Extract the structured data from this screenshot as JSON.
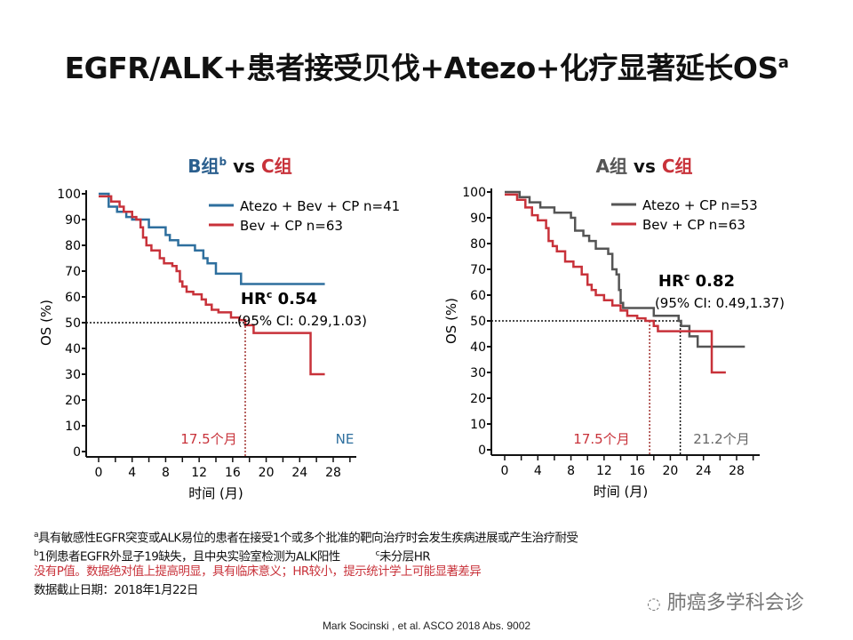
{
  "title": {
    "text": "EGFR/ALK+患者接受贝伐+Atezo+化疗显著延长OS",
    "sup": "a"
  },
  "chart_data": [
    {
      "type": "line",
      "subtype": "kaplan-meier",
      "title_parts": [
        {
          "text": "B组",
          "color": "#2b5f8e"
        },
        {
          "text": "b",
          "sup": true,
          "color": "#2b5f8e"
        },
        {
          "text": " vs ",
          "color": "#111"
        },
        {
          "text": "C组",
          "color": "#c8323a"
        }
      ],
      "xlabel": "时间 (月)",
      "ylabel": "OS (%)",
      "xlim": [
        0,
        28
      ],
      "ylim": [
        0,
        100
      ],
      "xticks": [
        0,
        4,
        8,
        12,
        16,
        20,
        24,
        28
      ],
      "yticks": [
        0,
        10,
        20,
        30,
        40,
        50,
        60,
        70,
        80,
        90,
        100
      ],
      "series": [
        {
          "name": "Atezo + Bev + CP n=41",
          "color": "#2e6f9e",
          "points": [
            [
              0,
              100
            ],
            [
              1.2,
              95
            ],
            [
              2.2,
              93
            ],
            [
              3.3,
              91
            ],
            [
              4,
              90
            ],
            [
              6,
              87
            ],
            [
              8,
              84
            ],
            [
              8.5,
              82
            ],
            [
              9.5,
              80
            ],
            [
              11.5,
              78
            ],
            [
              12.5,
              75
            ],
            [
              13,
              73
            ],
            [
              14,
              69
            ],
            [
              17,
              65
            ],
            [
              27,
              65
            ]
          ]
        },
        {
          "name": "Bev + CP n=63",
          "color": "#c8323a",
          "points": [
            [
              0,
              99
            ],
            [
              1.5,
              97
            ],
            [
              2.5,
              95
            ],
            [
              3,
              93
            ],
            [
              4,
              91
            ],
            [
              4.5,
              90
            ],
            [
              5,
              87
            ],
            [
              5.3,
              83
            ],
            [
              5.7,
              80
            ],
            [
              6.3,
              78
            ],
            [
              7.3,
              75
            ],
            [
              7.8,
              73
            ],
            [
              8.8,
              72
            ],
            [
              9.3,
              70
            ],
            [
              9.7,
              66
            ],
            [
              10,
              64
            ],
            [
              10.5,
              62
            ],
            [
              11.3,
              61
            ],
            [
              12.3,
              59
            ],
            [
              12.8,
              57
            ],
            [
              13.5,
              55
            ],
            [
              14.3,
              54
            ],
            [
              15.8,
              52
            ],
            [
              16.8,
              51
            ],
            [
              17.5,
              49
            ],
            [
              18.5,
              46
            ],
            [
              25.3,
              46
            ],
            [
              25.3,
              30
            ],
            [
              27,
              30
            ]
          ]
        }
      ],
      "median_lines": [
        {
          "x": 17.5,
          "color": "#a0302f"
        }
      ],
      "median_labels": [
        {
          "text": "17.5个月",
          "color": "#c8323a"
        },
        {
          "text": "NE",
          "color": "#2e6f9e"
        }
      ],
      "hr": {
        "label": "HR",
        "sup": "c",
        "value": "0.54",
        "ci": "(95% CI: 0.29,1.03)"
      }
    },
    {
      "type": "line",
      "subtype": "kaplan-meier",
      "title_parts": [
        {
          "text": "A组",
          "color": "#555"
        },
        {
          "text": " vs ",
          "color": "#111"
        },
        {
          "text": "C组",
          "color": "#c8323a"
        }
      ],
      "xlabel": "时间 (月)",
      "ylabel": "OS (%)",
      "xlim": [
        0,
        28
      ],
      "ylim": [
        0,
        100
      ],
      "xticks": [
        0,
        4,
        8,
        12,
        16,
        20,
        24,
        28
      ],
      "yticks": [
        0,
        10,
        20,
        30,
        40,
        50,
        60,
        70,
        80,
        90,
        100
      ],
      "series": [
        {
          "name": "Atezo + CP n=53",
          "color": "#555555",
          "points": [
            [
              0,
              100
            ],
            [
              1.8,
              98
            ],
            [
              3,
              96
            ],
            [
              4.3,
              94
            ],
            [
              6,
              92
            ],
            [
              8,
              90
            ],
            [
              8.5,
              85
            ],
            [
              9.5,
              83
            ],
            [
              10.2,
              81
            ],
            [
              11,
              78
            ],
            [
              12.5,
              76
            ],
            [
              13,
              70
            ],
            [
              13.5,
              68
            ],
            [
              13.8,
              62
            ],
            [
              14,
              57
            ],
            [
              14.3,
              55
            ],
            [
              18,
              52
            ],
            [
              21,
              50
            ],
            [
              21.3,
              48
            ],
            [
              22.3,
              44
            ],
            [
              23.3,
              40
            ],
            [
              29,
              40
            ]
          ]
        },
        {
          "name": "Bev + CP n=63",
          "color": "#c8323a",
          "points": [
            [
              0,
              99
            ],
            [
              1.5,
              97
            ],
            [
              2.5,
              94
            ],
            [
              3.3,
              91
            ],
            [
              4,
              89
            ],
            [
              5,
              86
            ],
            [
              5.3,
              81
            ],
            [
              5.8,
              79
            ],
            [
              6.3,
              77
            ],
            [
              7.3,
              73
            ],
            [
              8.3,
              71
            ],
            [
              9.3,
              68
            ],
            [
              10,
              64
            ],
            [
              10.5,
              62
            ],
            [
              11,
              60
            ],
            [
              12,
              58
            ],
            [
              13,
              56
            ],
            [
              14,
              54
            ],
            [
              14.8,
              52
            ],
            [
              16,
              51
            ],
            [
              17,
              50
            ],
            [
              18,
              48
            ],
            [
              18.5,
              46
            ],
            [
              25,
              46
            ],
            [
              25,
              30
            ],
            [
              26.7,
              30
            ]
          ]
        }
      ],
      "median_lines": [
        {
          "x": 17.5,
          "color": "#a0302f"
        },
        {
          "x": 21.2,
          "color": "#111"
        }
      ],
      "median_labels": [
        {
          "text": "17.5个月",
          "color": "#c8323a"
        },
        {
          "text": "21.2个月",
          "color": "#666"
        }
      ],
      "hr": {
        "label": "HR",
        "sup": "c",
        "value": "0.82",
        "ci": "(95% CI: 0.49,1.37)"
      }
    }
  ],
  "footnotes": {
    "a": {
      "sup": "a",
      "text": "具有敏感性EGFR突变或ALK易位的患者在接受1个或多个批准的靶向治疗时会发生疾病进展或产生治疗耐受"
    },
    "b": {
      "sup": "b",
      "text": "1例患者EGFR外显子19缺失，且中央实验室检测为ALK阳性",
      "sup2": "c",
      "text2": "未分层HR"
    },
    "note": "没有P值。数据绝对值上提高明显，具有临床意义；HR较小，提示统计学上可能显著差异",
    "cutoff": "数据截止日期：2018年1月22日"
  },
  "watermark": "肺癌多学科会诊",
  "citation": "Mark Socinski , et al.  ASCO 2018 Abs. 9002"
}
